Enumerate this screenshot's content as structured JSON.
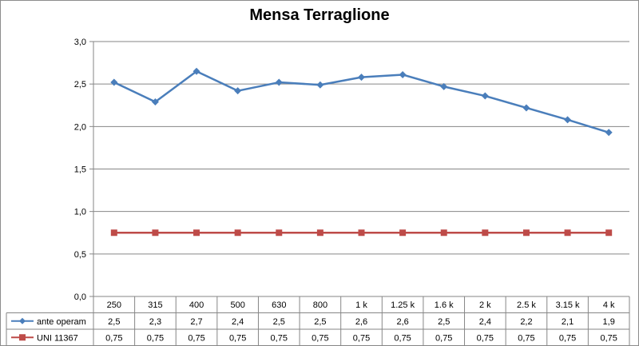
{
  "chart_data": {
    "type": "line",
    "title": "Mensa Terraglione",
    "xlabel": "",
    "ylabel": "",
    "categories": [
      "250",
      "315",
      "400",
      "500",
      "630",
      "800",
      "1 k",
      "1.25 k",
      "1.6 k",
      "2 k",
      "2.5 k",
      "3.15 k",
      "4 k"
    ],
    "ylim": [
      0,
      3.0
    ],
    "yticks": [
      "0,0",
      "0,5",
      "1,0",
      "1,5",
      "2,0",
      "2,5",
      "3,0"
    ],
    "grid": true,
    "legend": "data-table",
    "series": [
      {
        "name": "ante operam",
        "color": "#4a7ebb",
        "marker": "diamond",
        "values": [
          2.52,
          2.29,
          2.65,
          2.42,
          2.52,
          2.49,
          2.58,
          2.61,
          2.47,
          2.36,
          2.22,
          2.08,
          1.93
        ],
        "labels": [
          "2,5",
          "2,3",
          "2,7",
          "2,4",
          "2,5",
          "2,5",
          "2,6",
          "2,6",
          "2,5",
          "2,4",
          "2,2",
          "2,1",
          "1,9"
        ]
      },
      {
        "name": "UNI 11367",
        "color": "#be4b48",
        "marker": "square",
        "values": [
          0.75,
          0.75,
          0.75,
          0.75,
          0.75,
          0.75,
          0.75,
          0.75,
          0.75,
          0.75,
          0.75,
          0.75,
          0.75
        ],
        "labels": [
          "0,75",
          "0,75",
          "0,75",
          "0,75",
          "0,75",
          "0,75",
          "0,75",
          "0,75",
          "0,75",
          "0,75",
          "0,75",
          "0,75",
          "0,75"
        ]
      }
    ]
  }
}
